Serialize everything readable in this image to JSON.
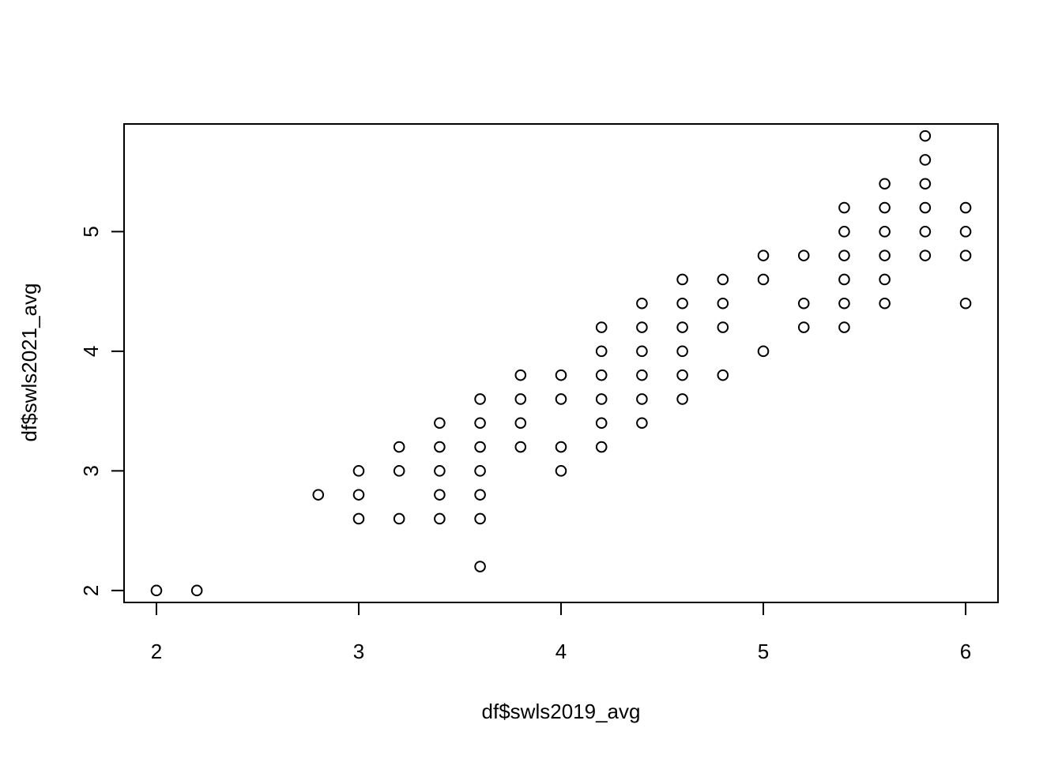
{
  "chart_data": {
    "type": "scatter",
    "title": "",
    "xlabel": "df$swls2019_avg",
    "ylabel": "df$swls2021_avg",
    "xlim": [
      1.84,
      6.16
    ],
    "ylim": [
      1.9,
      5.9
    ],
    "x_ticks": [
      2,
      3,
      4,
      5,
      6
    ],
    "x_tick_labels": [
      "2",
      "3",
      "4",
      "5",
      "6"
    ],
    "y_ticks": [
      2,
      3,
      4,
      5
    ],
    "y_tick_labels": [
      "2",
      "3",
      "4",
      "5"
    ],
    "grid": false,
    "legend": "none",
    "marker": "open-circle",
    "points": [
      [
        2.0,
        2.0
      ],
      [
        2.2,
        2.0
      ],
      [
        2.8,
        2.8
      ],
      [
        3.0,
        3.0
      ],
      [
        3.0,
        2.8
      ],
      [
        3.0,
        2.6
      ],
      [
        3.2,
        3.2
      ],
      [
        3.2,
        3.0
      ],
      [
        3.2,
        2.6
      ],
      [
        3.4,
        3.4
      ],
      [
        3.4,
        3.2
      ],
      [
        3.4,
        3.0
      ],
      [
        3.4,
        2.8
      ],
      [
        3.4,
        2.6
      ],
      [
        3.6,
        3.6
      ],
      [
        3.6,
        3.4
      ],
      [
        3.6,
        3.2
      ],
      [
        3.6,
        3.0
      ],
      [
        3.6,
        2.8
      ],
      [
        3.6,
        2.6
      ],
      [
        3.6,
        2.2
      ],
      [
        3.8,
        3.8
      ],
      [
        3.8,
        3.6
      ],
      [
        3.8,
        3.4
      ],
      [
        3.8,
        3.2
      ],
      [
        4.0,
        3.8
      ],
      [
        4.0,
        3.6
      ],
      [
        4.0,
        3.2
      ],
      [
        4.0,
        3.0
      ],
      [
        4.2,
        4.2
      ],
      [
        4.2,
        4.0
      ],
      [
        4.2,
        3.8
      ],
      [
        4.2,
        3.6
      ],
      [
        4.2,
        3.4
      ],
      [
        4.2,
        3.2
      ],
      [
        4.4,
        4.4
      ],
      [
        4.4,
        4.2
      ],
      [
        4.4,
        4.0
      ],
      [
        4.4,
        3.8
      ],
      [
        4.4,
        3.6
      ],
      [
        4.4,
        3.4
      ],
      [
        4.6,
        4.6
      ],
      [
        4.6,
        4.4
      ],
      [
        4.6,
        4.2
      ],
      [
        4.6,
        4.0
      ],
      [
        4.6,
        3.8
      ],
      [
        4.6,
        3.6
      ],
      [
        4.8,
        4.6
      ],
      [
        4.8,
        4.4
      ],
      [
        4.8,
        4.2
      ],
      [
        4.8,
        3.8
      ],
      [
        5.0,
        4.8
      ],
      [
        5.0,
        4.6
      ],
      [
        5.0,
        4.0
      ],
      [
        5.2,
        4.8
      ],
      [
        5.2,
        4.4
      ],
      [
        5.2,
        4.2
      ],
      [
        5.4,
        5.2
      ],
      [
        5.4,
        5.0
      ],
      [
        5.4,
        4.8
      ],
      [
        5.4,
        4.6
      ],
      [
        5.4,
        4.4
      ],
      [
        5.4,
        4.2
      ],
      [
        5.6,
        5.4
      ],
      [
        5.6,
        5.2
      ],
      [
        5.6,
        5.0
      ],
      [
        5.6,
        4.8
      ],
      [
        5.6,
        4.6
      ],
      [
        5.6,
        4.4
      ],
      [
        5.8,
        5.8
      ],
      [
        5.8,
        5.6
      ],
      [
        5.8,
        5.4
      ],
      [
        5.8,
        5.2
      ],
      [
        5.8,
        5.0
      ],
      [
        5.8,
        4.8
      ],
      [
        6.0,
        5.2
      ],
      [
        6.0,
        5.0
      ],
      [
        6.0,
        4.8
      ],
      [
        6.0,
        4.4
      ]
    ]
  }
}
